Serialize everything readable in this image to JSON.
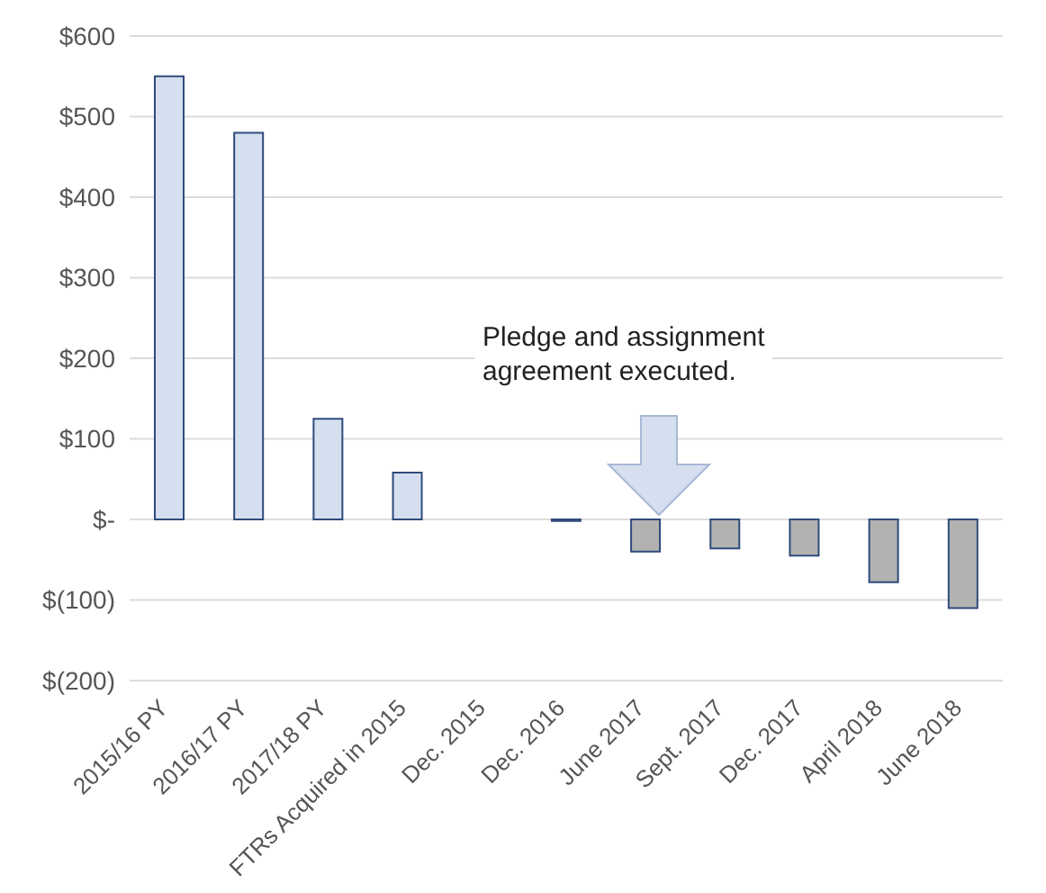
{
  "chart_data": {
    "type": "bar",
    "categories": [
      "2015/16 PY",
      "2016/17 PY",
      "2017/18 PY",
      "FTRs Acquired in 2015",
      "Dec. 2015",
      "Dec. 2016",
      "June 2017",
      "Sept. 2017",
      "Dec. 2017",
      "April 2018",
      "June 2018"
    ],
    "values": [
      550,
      480,
      125,
      58,
      0,
      -2,
      -40,
      -36,
      -45,
      -78,
      -110
    ],
    "colors": [
      "#d6dff0",
      "#d6dff0",
      "#d6dff0",
      "#d6dff0",
      "#d6dff0",
      "#d6dff0",
      "#b2b2b2",
      "#b2b2b2",
      "#b2b2b2",
      "#b2b2b2",
      "#b2b2b2"
    ],
    "ylim": [
      -200,
      600
    ],
    "yticks": [
      {
        "value": -200,
        "label": "$(200)"
      },
      {
        "value": -100,
        "label": "$(100)"
      },
      {
        "value": 0,
        "label": "$-"
      },
      {
        "value": 100,
        "label": "$100"
      },
      {
        "value": 200,
        "label": "$200"
      },
      {
        "value": 300,
        "label": "$300"
      },
      {
        "value": 400,
        "label": "$400"
      },
      {
        "value": 500,
        "label": "$500"
      },
      {
        "value": 600,
        "label": "$600"
      }
    ],
    "grid": "y",
    "annotations": [
      "Pledge and assignment agreement executed."
    ]
  }
}
